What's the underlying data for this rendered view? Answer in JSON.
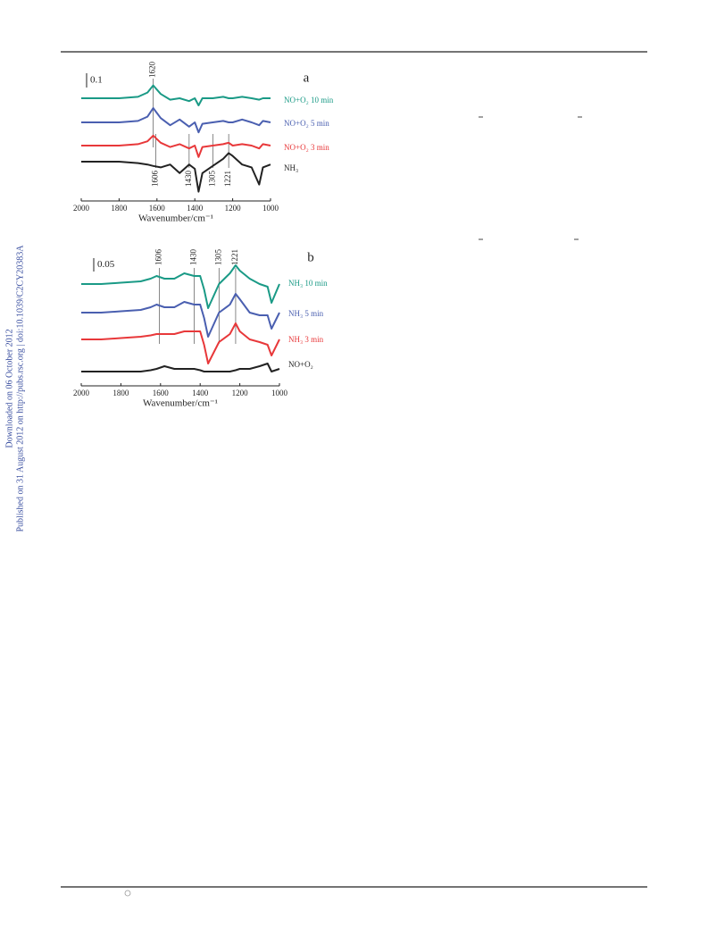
{
  "side_notes": [
    "Downloaded on 06 October 2012",
    "Published on 31 August 2012 on http://pubs.rsc.org | doi:10.1039/C2CY20383A"
  ],
  "chart_data": [
    {
      "type": "line",
      "label": "a",
      "scale_bar": 0.1,
      "scale_bar_label": "0.1",
      "x_label": "Wavenumber/cm⁻¹",
      "xlim": [
        2000,
        1000
      ],
      "xticks": [
        2000,
        1800,
        1600,
        1400,
        1200,
        1000
      ],
      "peaks": [
        1620,
        1606,
        1430,
        1305,
        1221
      ],
      "x": [
        2000,
        1900,
        1800,
        1700,
        1650,
        1620,
        1580,
        1530,
        1480,
        1430,
        1400,
        1380,
        1360,
        1305,
        1250,
        1221,
        1200,
        1150,
        1100,
        1060,
        1040,
        1000
      ],
      "series": [
        {
          "name": "NO+O₂ 10 min",
          "color": "#1a9a86",
          "values": [
            0,
            0,
            0,
            0.01,
            0.04,
            0.09,
            0.03,
            -0.01,
            0,
            -0.02,
            0,
            -0.05,
            0,
            0,
            0.01,
            0,
            0,
            0.01,
            0,
            -0.01,
            0,
            0
          ]
        },
        {
          "name": "NO+O₂ 5 min",
          "color": "#4a5fb0",
          "values": [
            0,
            0,
            0,
            0.01,
            0.04,
            0.1,
            0.03,
            -0.02,
            0.02,
            -0.03,
            0,
            -0.07,
            -0.01,
            0,
            0.01,
            0,
            0,
            0.02,
            0,
            -0.02,
            0.01,
            0
          ]
        },
        {
          "name": "NO+O₂ 3 min",
          "color": "#e8383a",
          "values": [
            0,
            0,
            0,
            0.01,
            0.03,
            0.07,
            0.02,
            -0.01,
            0.01,
            -0.02,
            0,
            -0.08,
            -0.01,
            0,
            0.01,
            0.02,
            0,
            0.01,
            0,
            -0.02,
            0.01,
            0
          ]
        },
        {
          "name": "NH₃",
          "color": "#222222",
          "values": [
            0,
            0,
            0,
            -0.01,
            -0.02,
            -0.03,
            -0.04,
            -0.02,
            -0.08,
            -0.02,
            -0.05,
            -0.21,
            -0.08,
            -0.03,
            0.02,
            0.06,
            0.04,
            -0.02,
            -0.04,
            -0.16,
            -0.04,
            -0.02
          ]
        }
      ]
    },
    {
      "type": "line",
      "label": "b",
      "scale_bar": 0.05,
      "scale_bar_label": "0.05",
      "x_label": "Wavenumber/cm⁻¹",
      "xlim": [
        2000,
        1000
      ],
      "xticks": [
        2000,
        1800,
        1600,
        1400,
        1200,
        1000
      ],
      "peaks": [
        1606,
        1430,
        1305,
        1221
      ],
      "x": [
        2000,
        1900,
        1800,
        1700,
        1650,
        1620,
        1580,
        1530,
        1480,
        1430,
        1400,
        1380,
        1360,
        1305,
        1250,
        1221,
        1200,
        1150,
        1100,
        1060,
        1040,
        1000
      ],
      "series": [
        {
          "name": "NH₃ 10 min",
          "color": "#1a9a86",
          "values": [
            0,
            0,
            0.005,
            0.01,
            0.02,
            0.03,
            0.02,
            0.02,
            0.04,
            0.03,
            0.03,
            -0.02,
            -0.09,
            0,
            0.04,
            0.07,
            0.05,
            0.02,
            0,
            -0.01,
            -0.07,
            0
          ]
        },
        {
          "name": "NH₃ 5 min",
          "color": "#4a5fb0",
          "values": [
            0,
            0,
            0.005,
            0.01,
            0.02,
            0.03,
            0.02,
            0.02,
            0.04,
            0.03,
            0.03,
            -0.02,
            -0.09,
            0,
            0.03,
            0.07,
            0.05,
            0,
            -0.01,
            -0.01,
            -0.06,
            0
          ]
        },
        {
          "name": "NH₃ 3 min",
          "color": "#e8383a",
          "values": [
            0,
            0,
            0.005,
            0.01,
            0.015,
            0.02,
            0.02,
            0.02,
            0.03,
            0.03,
            0.03,
            -0.02,
            -0.09,
            -0.01,
            0.02,
            0.06,
            0.03,
            0,
            -0.01,
            -0.02,
            -0.06,
            0
          ]
        },
        {
          "name": "NO+O₂",
          "color": "#222222",
          "values": [
            0,
            0,
            0,
            0,
            0.005,
            0.01,
            0.02,
            0.01,
            0.01,
            0.01,
            0.005,
            0,
            0,
            0,
            0,
            0.005,
            0.01,
            0.01,
            0.02,
            0.03,
            0,
            0.01
          ]
        }
      ]
    }
  ]
}
